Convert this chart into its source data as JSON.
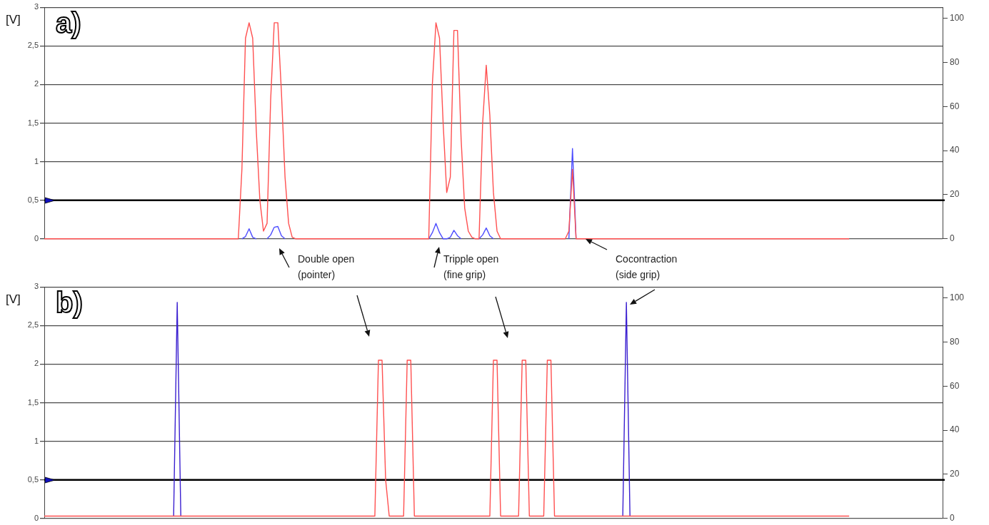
{
  "chart_data": [
    {
      "type": "line",
      "ylabel": "[V]",
      "annotations": [
        "a)",
        "Double open\n(pointer)",
        "Tripple open\n(fine grip)",
        "Cocontraction\n(side grip)"
      ],
      "categories": [
        null,
        null,
        null,
        null,
        null,
        null,
        null,
        null,
        null,
        null,
        null,
        null,
        null,
        null,
        null,
        null,
        null,
        null,
        null,
        null,
        null,
        null,
        null,
        null,
        null,
        null,
        null,
        null,
        null,
        null,
        null,
        null,
        null,
        null,
        null,
        null,
        null,
        null,
        null,
        null,
        null,
        null,
        null,
        null,
        null,
        null,
        null,
        null,
        null,
        null,
        null,
        null,
        null,
        null,
        null,
        null,
        null,
        null,
        null,
        null,
        null,
        null,
        null,
        null,
        null,
        null,
        null,
        null,
        null,
        null,
        null,
        null,
        null,
        null,
        null,
        null,
        null,
        null,
        null,
        null,
        null,
        null,
        null,
        null,
        null,
        null,
        null,
        null,
        null,
        null,
        null,
        null,
        null,
        null,
        null,
        null,
        null,
        null,
        null,
        null,
        null,
        null,
        null,
        null,
        null,
        null,
        null,
        null,
        null,
        null,
        null,
        null,
        null,
        null,
        null,
        null,
        null,
        null,
        null,
        null,
        null,
        null,
        null,
        null,
        null,
        null,
        null,
        null,
        null,
        null,
        null,
        null,
        null,
        null,
        null,
        null,
        null,
        null,
        null,
        null,
        null,
        null,
        null,
        null,
        null,
        null,
        null,
        null,
        null,
        null,
        null,
        null,
        null,
        null,
        null,
        null,
        null,
        null,
        null,
        null,
        null,
        null,
        null,
        null,
        null,
        null,
        null,
        null,
        null,
        null,
        null,
        null,
        null,
        null,
        null,
        null,
        null,
        null,
        null,
        null,
        null,
        null,
        null,
        null,
        null,
        null,
        null,
        null,
        null,
        null,
        null,
        null,
        null,
        null,
        null,
        null,
        null,
        null,
        null,
        null,
        null,
        null,
        null,
        null,
        null,
        null,
        null,
        null,
        null,
        null,
        null,
        null,
        null,
        null,
        null,
        null,
        null,
        null,
        null,
        null,
        null,
        null,
        null,
        null,
        null,
        null,
        null,
        null,
        null,
        null,
        null,
        null,
        null,
        null,
        null,
        null,
        null,
        null,
        null,
        null,
        null,
        null,
        null,
        null,
        null,
        null,
        null,
        null,
        null,
        null,
        null
      ],
      "ylim": [
        0,
        3
      ],
      "yticks": [
        0,
        {
          "value": 0.5,
          "label": "0,5"
        },
        1,
        {
          "value": 1.5,
          "label": "1,5"
        },
        2,
        {
          "value": 2.5,
          "label": "2,5"
        },
        3
      ],
      "y2lim": [
        0,
        105
      ],
      "y2ticks": [
        0,
        20,
        40,
        60,
        80,
        100
      ],
      "grid": "y",
      "marker": "none",
      "ref_lines": [
        {
          "axis": "y",
          "value": 0.5,
          "color": "#000000"
        }
      ],
      "series": [
        {
          "color": "#ff5050",
          "values": [
            0,
            0,
            0,
            0,
            0,
            0,
            0,
            0,
            0,
            0,
            0,
            0,
            0,
            0,
            0,
            0,
            0,
            0,
            0,
            0,
            0,
            0,
            0,
            0,
            0,
            0,
            0,
            0,
            0,
            0,
            0,
            0,
            0,
            0,
            0,
            0,
            0,
            0,
            0,
            0,
            0,
            0,
            0,
            0,
            0,
            0,
            0,
            0,
            0,
            0,
            0,
            0,
            0,
            0,
            0,
            0.9,
            2.6,
            2.8,
            2.6,
            1.4,
            0.5,
            0.1,
            0.2,
            1.8,
            2.8,
            2.8,
            1.9,
            0.8,
            0.2,
            0.02,
            0,
            0,
            0,
            0,
            0,
            0,
            0,
            0,
            0,
            0,
            0,
            0,
            0,
            0,
            0,
            0,
            0,
            0,
            0,
            0,
            0,
            0,
            0,
            0,
            0,
            0,
            0,
            0,
            0,
            0,
            0,
            0,
            0,
            0,
            0,
            0,
            0,
            0,
            2.0,
            2.8,
            2.6,
            1.5,
            0.6,
            0.8,
            2.7,
            2.7,
            1.3,
            0.4,
            0.1,
            0.02,
            0,
            0,
            1.5,
            2.25,
            1.6,
            0.6,
            0.1,
            0,
            0,
            0,
            0,
            0,
            0,
            0,
            0,
            0,
            0,
            0,
            0,
            0,
            0,
            0,
            0,
            0,
            0,
            0,
            0.1,
            0.9,
            0,
            0,
            0,
            0,
            0,
            0,
            0,
            0,
            0,
            0,
            0,
            0,
            0,
            0,
            0,
            0,
            0,
            0,
            0,
            0,
            0,
            0,
            0,
            0,
            0,
            0,
            0,
            0,
            0,
            0,
            0,
            0,
            0,
            0,
            0,
            0,
            0,
            0,
            0,
            0,
            0,
            0,
            0,
            0,
            0,
            0,
            0,
            0,
            0,
            0,
            0,
            0,
            0,
            0,
            0,
            0,
            0,
            0,
            0,
            0,
            0,
            0,
            0,
            0,
            0,
            0,
            0,
            0,
            0,
            0,
            0,
            0,
            0,
            0,
            0,
            0,
            0,
            null,
            null,
            null,
            null,
            null,
            null,
            null,
            null,
            null,
            null,
            null,
            null,
            null,
            null,
            null,
            null,
            null,
            null,
            null,
            null,
            null,
            null,
            null,
            null,
            null,
            null
          ]
        },
        {
          "color": "#4d4dff",
          "values": [
            null,
            null,
            null,
            null,
            null,
            null,
            null,
            null,
            null,
            null,
            null,
            null,
            null,
            null,
            null,
            null,
            null,
            null,
            null,
            null,
            null,
            null,
            null,
            null,
            null,
            null,
            null,
            null,
            null,
            null,
            null,
            null,
            null,
            null,
            null,
            null,
            null,
            null,
            null,
            null,
            null,
            null,
            null,
            null,
            null,
            null,
            null,
            null,
            null,
            null,
            null,
            null,
            null,
            null,
            null,
            0,
            0.03,
            0.13,
            0.02,
            0,
            null,
            null,
            0,
            0.05,
            0.15,
            0.16,
            0.04,
            0,
            null,
            null,
            null,
            null,
            null,
            null,
            null,
            null,
            null,
            null,
            null,
            null,
            null,
            null,
            null,
            null,
            null,
            null,
            null,
            null,
            null,
            null,
            null,
            null,
            null,
            null,
            null,
            null,
            null,
            null,
            null,
            null,
            null,
            null,
            null,
            null,
            null,
            null,
            null,
            0,
            0.08,
            0.2,
            0.08,
            0,
            0,
            0.02,
            0.11,
            0.04,
            0,
            null,
            null,
            null,
            null,
            0,
            0.05,
            0.14,
            0.04,
            0,
            null,
            null,
            null,
            null,
            null,
            null,
            null,
            null,
            null,
            null,
            null,
            null,
            null,
            null,
            null,
            null,
            null,
            null,
            null,
            null,
            0,
            1.17,
            0,
            null,
            null,
            null,
            null,
            null,
            null,
            null,
            null,
            null,
            null,
            null,
            null,
            null,
            null,
            null,
            null,
            null,
            null,
            null,
            null,
            null,
            null,
            null,
            null,
            null,
            null,
            null,
            null,
            null,
            null,
            null,
            null,
            null,
            null,
            null,
            null,
            null,
            null,
            null,
            null,
            null,
            null,
            null,
            null,
            null,
            null,
            null,
            null,
            null,
            null,
            null,
            null,
            null,
            null,
            null,
            null,
            null,
            null,
            null,
            null,
            null,
            null,
            null,
            null,
            null,
            null,
            null,
            null,
            null,
            null,
            null,
            null,
            null,
            null,
            null,
            null,
            null,
            null,
            null,
            null,
            null,
            null,
            null,
            null,
            null,
            null,
            null,
            null,
            null,
            null,
            null,
            null,
            null,
            null,
            null,
            null,
            null,
            null,
            null,
            null,
            null,
            null
          ]
        }
      ]
    },
    {
      "type": "line",
      "ylabel": "[V]",
      "annotations": [
        "b)"
      ],
      "categories": [
        null,
        null,
        null,
        null,
        null,
        null,
        null,
        null,
        null,
        null,
        null,
        null,
        null,
        null,
        null,
        null,
        null,
        null,
        null,
        null,
        null,
        null,
        null,
        null,
        null,
        null,
        null,
        null,
        null,
        null,
        null,
        null,
        null,
        null,
        null,
        null,
        null,
        null,
        null,
        null,
        null,
        null,
        null,
        null,
        null,
        null,
        null,
        null,
        null,
        null,
        null,
        null,
        null,
        null,
        null,
        null,
        null,
        null,
        null,
        null,
        null,
        null,
        null,
        null,
        null,
        null,
        null,
        null,
        null,
        null,
        null,
        null,
        null,
        null,
        null,
        null,
        null,
        null,
        null,
        null,
        null,
        null,
        null,
        null,
        null,
        null,
        null,
        null,
        null,
        null,
        null,
        null,
        null,
        null,
        null,
        null,
        null,
        null,
        null,
        null,
        null,
        null,
        null,
        null,
        null,
        null,
        null,
        null,
        null,
        null,
        null,
        null,
        null,
        null,
        null,
        null,
        null,
        null,
        null,
        null,
        null,
        null,
        null,
        null,
        null,
        null,
        null,
        null,
        null,
        null,
        null,
        null,
        null,
        null,
        null,
        null,
        null,
        null,
        null,
        null,
        null,
        null,
        null,
        null,
        null,
        null,
        null,
        null,
        null,
        null,
        null,
        null,
        null,
        null,
        null,
        null,
        null,
        null,
        null,
        null,
        null,
        null,
        null,
        null,
        null,
        null,
        null,
        null,
        null,
        null,
        null,
        null,
        null,
        null,
        null,
        null,
        null,
        null,
        null,
        null,
        null,
        null,
        null,
        null,
        null,
        null,
        null,
        null,
        null,
        null,
        null,
        null,
        null,
        null,
        null,
        null,
        null,
        null,
        null,
        null,
        null,
        null,
        null,
        null,
        null,
        null,
        null,
        null,
        null,
        null,
        null,
        null,
        null,
        null,
        null,
        null,
        null,
        null,
        null,
        null,
        null,
        null,
        null,
        null,
        null,
        null,
        null,
        null,
        null,
        null,
        null,
        null,
        null,
        null,
        null,
        null,
        null,
        null,
        null,
        null,
        null,
        null,
        null,
        null,
        null,
        null,
        null,
        null,
        null,
        null,
        null
      ],
      "ylim": [
        0,
        3
      ],
      "yticks": [
        0,
        {
          "value": 0.5,
          "label": "0,5"
        },
        1,
        {
          "value": 1.5,
          "label": "1,5"
        },
        2,
        {
          "value": 2.5,
          "label": "2,5"
        },
        3
      ],
      "y2lim": [
        0,
        105
      ],
      "y2ticks": [
        0,
        20,
        40,
        60,
        80,
        100
      ],
      "grid": "y",
      "marker": "none",
      "ref_lines": [
        {
          "axis": "y",
          "value": 0.5,
          "color": "#000000"
        }
      ],
      "series": [
        {
          "color": "#ff5050",
          "values": [
            0.03,
            0.03,
            0.03,
            0.03,
            0.03,
            0.03,
            0.03,
            0.03,
            0.03,
            0.03,
            0.03,
            0.03,
            0.03,
            0.03,
            0.03,
            0.03,
            0.03,
            0.03,
            0.03,
            0.03,
            0.03,
            0.03,
            0.03,
            0.03,
            0.03,
            0.03,
            0.03,
            0.03,
            0.03,
            0.03,
            0.03,
            0.03,
            0.03,
            0.03,
            0.03,
            0.03,
            0.03,
            0.03,
            0.03,
            0.03,
            0.03,
            0.03,
            0.03,
            0.03,
            0.03,
            0.03,
            0.03,
            0.03,
            0.03,
            0.03,
            0.03,
            0.03,
            0.03,
            0.03,
            0.03,
            0.03,
            0.03,
            0.03,
            0.03,
            0.03,
            0.03,
            0.03,
            0.03,
            0.03,
            0.03,
            0.03,
            0.03,
            0.03,
            0.03,
            0.03,
            0.03,
            0.03,
            0.03,
            0.03,
            0.03,
            0.03,
            0.03,
            0.03,
            0.03,
            0.03,
            0.03,
            0.03,
            0.03,
            0.03,
            0.03,
            0.03,
            0.03,
            0.03,
            0.03,
            0.03,
            0.03,
            0.03,
            0.03,
            2.05,
            2.05,
            0.5,
            0.03,
            0.03,
            0.03,
            0.03,
            0.03,
            2.05,
            2.05,
            0.03,
            0.03,
            0.03,
            0.03,
            0.03,
            0.03,
            0.03,
            0.03,
            0.03,
            0.03,
            0.03,
            0.03,
            0.03,
            0.03,
            0.03,
            0.03,
            0.03,
            0.03,
            0.03,
            0.03,
            0.03,
            0.03,
            2.05,
            2.05,
            0.03,
            0.03,
            0.03,
            0.03,
            0.03,
            0.03,
            2.05,
            2.05,
            0.03,
            0.03,
            0.03,
            0.03,
            0.03,
            2.05,
            2.05,
            0.03,
            0.03,
            0.03,
            0.03,
            0.03,
            0.03,
            0.03,
            0.03,
            0.03,
            0.03,
            0.03,
            0.03,
            0.03,
            0.03,
            0.03,
            0.03,
            0.03,
            0.03,
            0.03,
            0.03,
            0.03,
            0.03,
            0.03,
            0.03,
            0.03,
            0.03,
            0.03,
            0.03,
            0.03,
            0.03,
            0.03,
            0.03,
            0.03,
            0.03,
            0.03,
            0.03,
            0.03,
            0.03,
            0.03,
            0.03,
            0.03,
            0.03,
            0.03,
            0.03,
            0.03,
            0.03,
            0.03,
            0.03,
            0.03,
            0.03,
            0.03,
            0.03,
            0.03,
            0.03,
            0.03,
            0.03,
            0.03,
            0.03,
            0.03,
            0.03,
            0.03,
            0.03,
            0.03,
            0.03,
            0.03,
            0.03,
            0.03,
            0.03,
            0.03,
            0.03,
            0.03,
            0.03,
            0.03,
            0.03,
            0.03,
            0.03,
            0.03,
            0.03,
            0.03,
            0.03,
            0.03,
            0.03,
            0.03,
            null,
            null,
            null,
            null,
            null,
            null,
            null,
            null,
            null,
            null,
            null,
            null,
            null,
            null,
            null,
            null,
            null,
            null,
            null,
            null,
            null,
            null,
            null,
            null,
            null,
            null
          ]
        },
        {
          "color": "#3a1fd0",
          "values": [
            null,
            null,
            null,
            null,
            null,
            null,
            null,
            null,
            null,
            null,
            null,
            null,
            null,
            null,
            null,
            null,
            null,
            null,
            null,
            null,
            null,
            null,
            null,
            null,
            null,
            null,
            null,
            null,
            null,
            null,
            null,
            null,
            null,
            null,
            null,
            null,
            0.03,
            2.8,
            0.03,
            null,
            null,
            null,
            null,
            null,
            null,
            null,
            null,
            null,
            null,
            null,
            null,
            null,
            null,
            null,
            null,
            null,
            null,
            null,
            null,
            null,
            null,
            null,
            null,
            null,
            null,
            null,
            null,
            null,
            null,
            null,
            null,
            null,
            null,
            null,
            null,
            null,
            null,
            null,
            null,
            null,
            null,
            null,
            null,
            null,
            null,
            null,
            null,
            null,
            null,
            null,
            null,
            null,
            null,
            null,
            null,
            null,
            null,
            null,
            null,
            null,
            null,
            null,
            null,
            null,
            null,
            null,
            null,
            null,
            null,
            null,
            null,
            null,
            null,
            null,
            null,
            null,
            null,
            null,
            null,
            null,
            null,
            null,
            null,
            null,
            null,
            null,
            null,
            null,
            null,
            null,
            null,
            null,
            null,
            null,
            null,
            null,
            null,
            null,
            null,
            null,
            null,
            null,
            null,
            null,
            null,
            null,
            null,
            null,
            null,
            null,
            null,
            null,
            null,
            null,
            null,
            null,
            null,
            null,
            null,
            null,
            null,
            0.03,
            2.8,
            0.03,
            null,
            null,
            null,
            null,
            null,
            null,
            null,
            null,
            null,
            null,
            null,
            null,
            null,
            null,
            null,
            null,
            null,
            null,
            null,
            null,
            null,
            null,
            null,
            null,
            null,
            null,
            null,
            null,
            null,
            null,
            null,
            null,
            null,
            null,
            null,
            null,
            null,
            null,
            null,
            null,
            null,
            null,
            null,
            null,
            null,
            null,
            null,
            null,
            null,
            null,
            null,
            null,
            null,
            null,
            null,
            null,
            null,
            null,
            null,
            null,
            null,
            null,
            null,
            null,
            null,
            null,
            null,
            null,
            null,
            null,
            null,
            null,
            null,
            null,
            null,
            null,
            null,
            null,
            null,
            null,
            null,
            null,
            null,
            null,
            null,
            null,
            null
          ]
        }
      ]
    }
  ]
}
